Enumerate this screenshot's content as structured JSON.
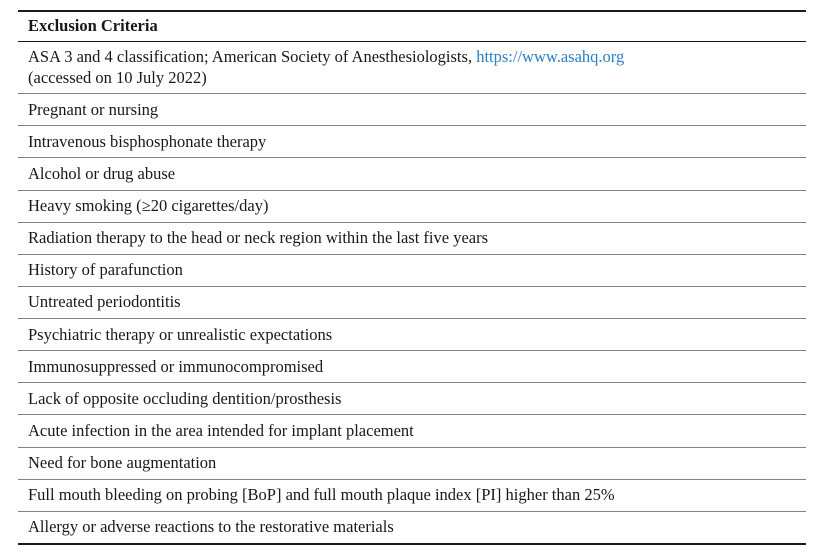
{
  "table": {
    "header": "Exclusion Criteria",
    "link_color": "#2b80c2",
    "asa_row": {
      "text_before_link": "ASA 3 and 4 classification; American Society of Anesthesiologists, ",
      "link_text": "https://www.asahq.org",
      "line2": "(accessed on 10 July 2022)"
    },
    "rows": [
      "Pregnant or nursing",
      "Intravenous bisphosphonate therapy",
      "Alcohol or drug abuse",
      "Heavy smoking (≥20 cigarettes/day)",
      "Radiation therapy to the head or neck region within the last five years",
      "History of parafunction",
      "Untreated periodontitis",
      "Psychiatric therapy or unrealistic expectations",
      "Immunosuppressed or immunocompromised",
      "Lack of opposite occluding dentition/prosthesis",
      "Acute infection in the area intended for implant placement",
      "Need for bone augmentation",
      "Full mouth bleeding on probing [BoP] and full mouth plaque index [PI] higher than 25%",
      "Allergy or adverse reactions to the restorative materials"
    ]
  }
}
